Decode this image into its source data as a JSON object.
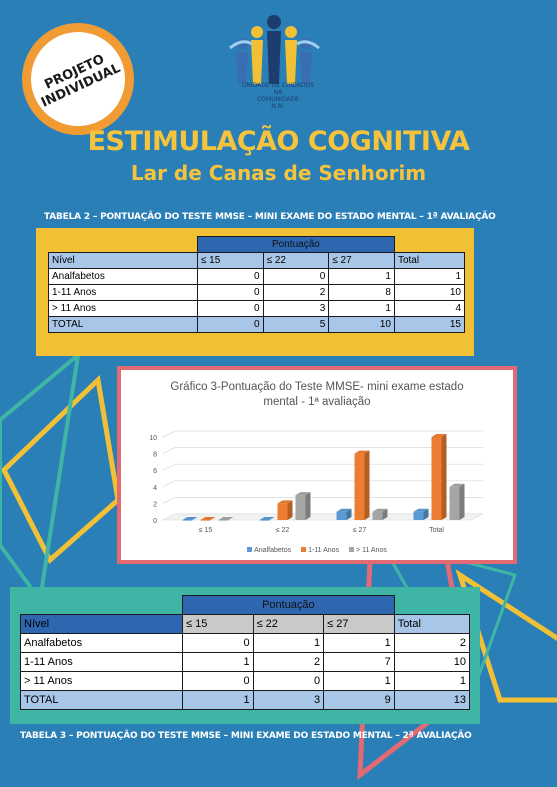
{
  "badge": {
    "line1": "PROJETO",
    "line2": "INDIVIDUAL"
  },
  "logo": {
    "line1": "UNIDADE DE CUIDADOS NA",
    "line2": "COMUNIDADE",
    "line3": "N.M."
  },
  "title": "ESTIMULAÇÃO COGNITIVA",
  "subtitle": "Lar de Canas de Senhorim",
  "table2": {
    "caption": "TABELA 2 – PONTUAÇÃO DO TESTE MMSE – MINI EXAME DO ESTADO MENTAL – 1ª AVALIAÇÃO",
    "group_header": "Pontuação",
    "headers": [
      "Nível",
      "≤ 15",
      "≤ 22",
      "≤ 27",
      "Total"
    ],
    "rows": [
      [
        "Analfabetos",
        "0",
        "0",
        "1",
        "1"
      ],
      [
        "1-11 Anos",
        "0",
        "2",
        "8",
        "10"
      ],
      [
        "> 11 Anos",
        "0",
        "3",
        "1",
        "4"
      ],
      [
        "TOTAL",
        "0",
        "5",
        "10",
        "15"
      ]
    ]
  },
  "table3": {
    "caption": "TABELA 3 – PONTUAÇÃO DO TESTE MMSE – MINI EXAME DO ESTADO MENTAL – 2ª AVALIAÇÃO",
    "group_header": "Pontuação",
    "headers": [
      "Nível",
      "≤ 15",
      "≤ 22",
      "≤ 27",
      "Total"
    ],
    "rows": [
      [
        "Analfabetos",
        "0",
        "1",
        "1",
        "2"
      ],
      [
        "1-11 Anos",
        "1",
        "2",
        "7",
        "10"
      ],
      [
        "> 11 Anos",
        "0",
        "0",
        "1",
        "1"
      ],
      [
        "TOTAL",
        "1",
        "3",
        "9",
        "13"
      ]
    ]
  },
  "colors": {
    "background": "#2a7fb7",
    "title": "#f6c33c",
    "badge_ring": "#f19b34",
    "panel1": "#f2c035",
    "panel2": "#3fb5a6",
    "chart_frame": "#e16a73"
  },
  "chart_data": {
    "type": "bar",
    "title_line1": "Gráfico 3-Pontuação  do Teste MMSE- mini exame estado",
    "title_line2": "mental - 1ª avaliação",
    "categories": [
      "≤ 15",
      "≤ 22",
      "≤ 27",
      "Total"
    ],
    "series": [
      {
        "name": "Analfabetos",
        "values": [
          0,
          0,
          1,
          1
        ],
        "color": "#5b9bd5"
      },
      {
        "name": "1-11 Anos",
        "values": [
          0,
          2,
          8,
          10
        ],
        "color": "#ed7d31"
      },
      {
        "name": "> 11 Anos",
        "values": [
          0,
          3,
          1,
          4
        ],
        "color": "#a5a5a5"
      }
    ],
    "yticks": [
      "0",
      "2",
      "4",
      "6",
      "8",
      "10"
    ],
    "ylim": [
      0,
      10
    ],
    "grid": true,
    "legend_position": "bottom"
  }
}
